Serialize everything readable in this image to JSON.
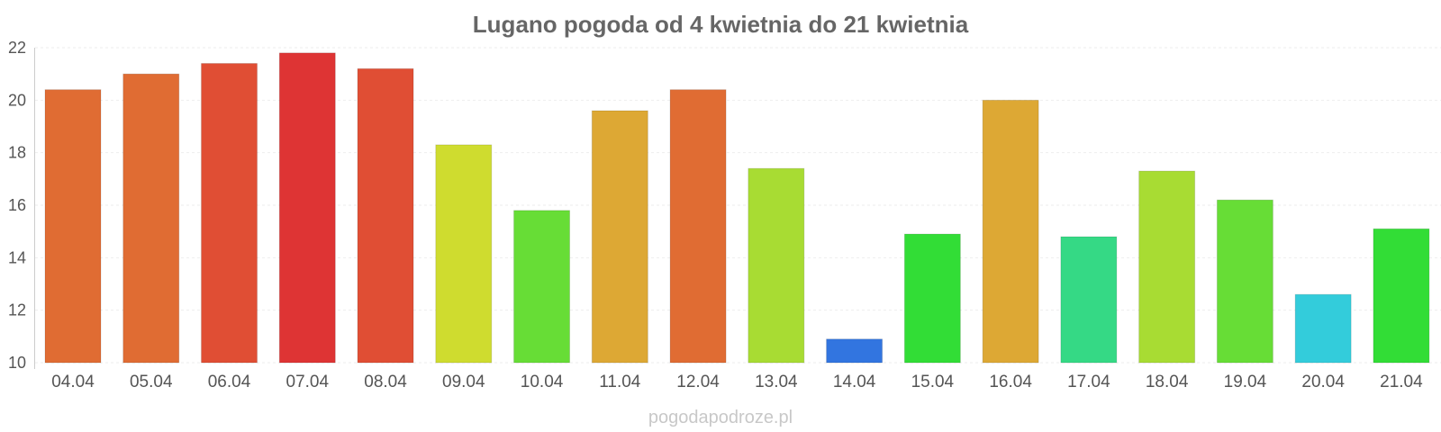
{
  "chart_data": {
    "type": "bar",
    "title": "Lugano pogoda od 4 kwietnia do 21 kwietnia",
    "xlabel": "",
    "ylabel": "",
    "ylim": [
      10,
      22
    ],
    "yticks": [
      10,
      12,
      14,
      16,
      18,
      20,
      22
    ],
    "grid": true,
    "categories": [
      "04.04",
      "05.04",
      "06.04",
      "07.04",
      "08.04",
      "09.04",
      "10.04",
      "11.04",
      "12.04",
      "13.04",
      "14.04",
      "15.04",
      "16.04",
      "17.04",
      "18.04",
      "19.04",
      "20.04",
      "21.04"
    ],
    "values": [
      20.4,
      21.0,
      21.4,
      21.8,
      21.2,
      18.3,
      15.8,
      19.6,
      20.4,
      17.4,
      10.9,
      14.9,
      20.0,
      14.8,
      17.3,
      16.2,
      12.6,
      15.1
    ],
    "colors": [
      "#e06c33",
      "#e06c33",
      "#e04e34",
      "#de3434",
      "#e04e34",
      "#cfdc2f",
      "#67dd36",
      "#dda834",
      "#e06c33",
      "#a8dc33",
      "#3275e0",
      "#32dd36",
      "#dda834",
      "#35d985",
      "#a8dc33",
      "#67dd36",
      "#33ccdb",
      "#32dd36"
    ]
  },
  "credit": "pogodapodroze.pl"
}
